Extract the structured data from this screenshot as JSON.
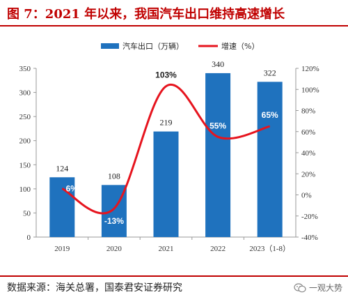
{
  "title": "图 7：2021 年以来，我国汽车出口维持高速增长",
  "source": "数据来源：海关总署，国泰君安证券研究",
  "watermark": "一观大势",
  "colors": {
    "title": "#c00000",
    "bar": "#1f72be",
    "line": "#e6141e",
    "label_dark": "#222222",
    "label_light": "#ffffff"
  },
  "chart_data": {
    "type": "bar+line",
    "categories": [
      "2019",
      "2020",
      "2021",
      "2022",
      "2023（1-8）"
    ],
    "series": [
      {
        "name": "汽车出口（万辆）",
        "type": "bar",
        "axis": "left",
        "values": [
          124,
          108,
          219,
          340,
          322
        ],
        "labels": [
          "124",
          "108",
          "219",
          "340",
          "322"
        ]
      },
      {
        "name": "增速（%）",
        "type": "line",
        "axis": "right",
        "values": [
          6,
          -13,
          103,
          55,
          65
        ],
        "labels": [
          "6%",
          "-13%",
          "103%",
          "55%",
          "65%"
        ]
      }
    ],
    "y_left": {
      "min": 0,
      "max": 350,
      "ticks": [
        "0",
        "50",
        "100",
        "150",
        "200",
        "250",
        "300",
        "350"
      ]
    },
    "y_right": {
      "min": -40,
      "max": 120,
      "ticks": [
        "-40%",
        "-20%",
        "0%",
        "20%",
        "40%",
        "60%",
        "80%",
        "100%",
        "120%"
      ]
    },
    "legend_position": "top-center",
    "grid": false
  }
}
